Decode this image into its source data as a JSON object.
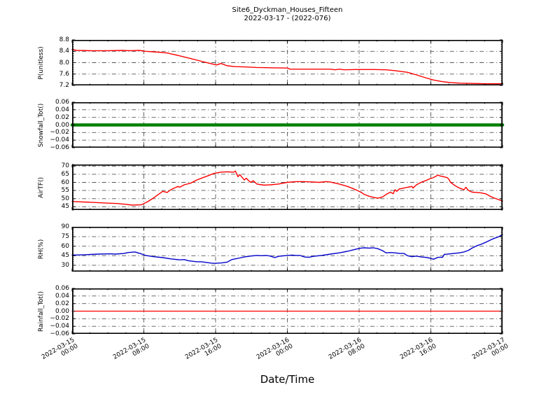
{
  "title": {
    "line1": "Site6_Dyckman_Houses_Fifteen",
    "line2": "2022-03-17 - (2022-076)"
  },
  "xaxis": {
    "label": "Date/Time",
    "xlim": [
      0,
      48
    ],
    "ticks_hours": [
      0,
      8,
      16,
      24,
      32,
      40,
      48
    ],
    "minor_step_hours": 2,
    "tick_labels": [
      [
        "2022-03-15",
        "00:00"
      ],
      [
        "2022-03-15",
        "08:00"
      ],
      [
        "2022-03-15",
        "16:00"
      ],
      [
        "2022-03-16",
        "00:00"
      ],
      [
        "2022-03-16",
        "08:00"
      ],
      [
        "2022-03-16",
        "16:00"
      ],
      [
        "2022-03-17",
        "00:00"
      ]
    ]
  },
  "style": {
    "background": "#ffffff",
    "spine_color": "#000000",
    "grid_color": "#555555",
    "red": "#ff0000",
    "green": "#008000",
    "blue": "#0000cc"
  },
  "chart_data": [
    {
      "type": "line",
      "name": "ph",
      "ylabel": "P(unitless)",
      "color": "#ff0000",
      "linewidth": 1.4,
      "ylim": [
        7.2,
        8.8
      ],
      "yticks": [
        8.8,
        8.4,
        8.0,
        7.6,
        7.2
      ],
      "ytick_labels": [
        "8.8",
        "8.4",
        "8.0",
        "7.6",
        "7.2"
      ],
      "yminor_step": 0.08,
      "x": [
        0,
        0.5,
        2,
        4,
        5.5,
        6.5,
        7.5,
        8.2,
        9.6,
        10.6,
        12,
        13.4,
        14.4,
        15.4,
        16.1,
        16.6,
        17.3,
        18.2,
        19.2,
        20.6,
        22,
        24,
        24.3,
        26.5,
        28.8,
        29.3,
        29.8,
        30.3,
        31.7,
        33.6,
        35,
        36,
        37.4,
        38.4,
        39.4,
        40.3,
        41.3,
        42.2,
        43.2,
        44.6,
        46,
        48
      ],
      "y": [
        8.46,
        8.43,
        8.42,
        8.42,
        8.43,
        8.42,
        8.43,
        8.4,
        8.37,
        8.34,
        8.24,
        8.13,
        8.05,
        7.97,
        7.92,
        7.97,
        7.89,
        7.86,
        7.85,
        7.83,
        7.82,
        7.81,
        7.77,
        7.77,
        7.77,
        7.75,
        7.77,
        7.75,
        7.76,
        7.76,
        7.75,
        7.72,
        7.66,
        7.57,
        7.47,
        7.39,
        7.33,
        7.3,
        7.28,
        7.27,
        7.26,
        7.26
      ]
    },
    {
      "type": "line",
      "name": "snowfall",
      "ylabel": "Snowfall_Tot()",
      "color": "#008000",
      "linewidth": 4.5,
      "ylim": [
        -0.06,
        0.06
      ],
      "yticks": [
        0.06,
        0.04,
        0.02,
        0,
        -0.02,
        -0.04,
        -0.06
      ],
      "ytick_labels": [
        "0.06",
        "0.04",
        "0.02",
        "0.00",
        "−0.02",
        "−0.04",
        "−0.06"
      ],
      "yminor_step": 0.004,
      "x": [
        0,
        48
      ],
      "y": [
        0,
        0
      ]
    },
    {
      "type": "line",
      "name": "air-temp",
      "ylabel": "AirTF()",
      "color": "#ff0000",
      "linewidth": 1.4,
      "ylim": [
        43,
        71
      ],
      "yticks": [
        70,
        65,
        60,
        55,
        50,
        45
      ],
      "ytick_labels": [
        "70",
        "65",
        "60",
        "55",
        "50",
        "45"
      ],
      "yminor_step": 1,
      "x": [
        0,
        2,
        4,
        5,
        6,
        6.7,
        7.7,
        8.4,
        9.1,
        9.6,
        10.1,
        10.6,
        11,
        11.8,
        12,
        12.5,
        13.2,
        13.9,
        14.4,
        15.1,
        15.8,
        16.6,
        17.3,
        18,
        18.2,
        18.5,
        18.7,
        19.2,
        19.4,
        19.9,
        20.2,
        20.6,
        21.4,
        22.1,
        23,
        24,
        25,
        25.9,
        26.9,
        27.6,
        28.3,
        28.8,
        29.8,
        30.7,
        31.4,
        32.2,
        32.6,
        33.1,
        33.6,
        34.1,
        34.6,
        35,
        35.5,
        35.8,
        36,
        36.2,
        36.5,
        37,
        37.4,
        37.9,
        38,
        38.4,
        38.9,
        39.4,
        39.8,
        40.3,
        40.8,
        41,
        41.8,
        42,
        42.2,
        42.7,
        43.2,
        43.7,
        43.9,
        44.2,
        44.6,
        45.1,
        45.6,
        46.1,
        46.6,
        47,
        47.5,
        48
      ],
      "y": [
        48.2,
        47.8,
        47.2,
        47,
        46.5,
        46,
        46.2,
        48,
        50.5,
        52.5,
        54.5,
        53.8,
        55.5,
        57.5,
        57,
        58.5,
        59.5,
        61.5,
        62.5,
        64,
        65.5,
        66.3,
        66.5,
        66.2,
        67,
        63.5,
        64.8,
        61.5,
        62.5,
        60,
        61,
        59,
        58.3,
        58.5,
        59,
        60,
        60.5,
        60.5,
        60.2,
        60,
        60.5,
        60.2,
        59,
        57.5,
        56,
        54,
        52.5,
        51.5,
        50.8,
        50.3,
        51,
        52.5,
        54,
        53,
        55.5,
        54.5,
        56,
        56.5,
        57,
        57.5,
        56.5,
        58.5,
        60,
        61,
        62,
        63,
        64.5,
        64,
        63,
        62,
        60,
        58,
        56.5,
        55.5,
        57,
        55,
        54,
        53.8,
        53.5,
        53,
        51.5,
        50.5,
        49.5,
        48.5
      ]
    },
    {
      "type": "line",
      "name": "rh",
      "ylabel": "RH(%)",
      "color": "#0000cc",
      "linewidth": 1.4,
      "ylim": [
        20,
        90.5
      ],
      "yticks": [
        90,
        75,
        60,
        45,
        30
      ],
      "ytick_labels": [
        "90",
        "75",
        "60",
        "45",
        "30"
      ],
      "yminor_step": 3,
      "x": [
        0,
        1.4,
        2.9,
        4.3,
        4.8,
        5.8,
        6.2,
        7,
        7.7,
        8.2,
        9.1,
        10.1,
        11,
        12,
        12.5,
        13,
        13.9,
        14.4,
        14.9,
        15.4,
        15.8,
        16.6,
        17.3,
        17.8,
        18.2,
        18.7,
        19.2,
        19.9,
        20.6,
        21.1,
        21.6,
        22.1,
        22.6,
        23,
        24,
        24.5,
        25,
        25.4,
        25.9,
        26.4,
        26.9,
        27.8,
        28.8,
        29.8,
        30.7,
        31.7,
        32.2,
        32.6,
        33.1,
        33.6,
        34.1,
        34.6,
        35,
        35.5,
        36,
        36.5,
        37,
        37.4,
        37.9,
        38.4,
        38.9,
        39.4,
        39.8,
        40.3,
        40.8,
        41.3,
        41.5,
        42.2,
        43.2,
        43.7,
        44.2,
        44.6,
        45.1,
        45.6,
        46.1,
        46.6,
        47,
        47.5,
        48
      ],
      "y": [
        46,
        46.5,
        47.5,
        48,
        47.5,
        48.5,
        50,
        51,
        48,
        45.5,
        43.5,
        42,
        40,
        38.5,
        39,
        37,
        35.5,
        35.5,
        34.5,
        33.5,
        33,
        33.5,
        35,
        39,
        40,
        41.5,
        43,
        44.5,
        45.5,
        45,
        45.5,
        44.5,
        42,
        44,
        45.5,
        46,
        45.5,
        45.5,
        43,
        42.5,
        44,
        45.5,
        47.5,
        49.5,
        52,
        55.5,
        57,
        57.5,
        57,
        57.5,
        56,
        53,
        49.5,
        50,
        49.5,
        48.5,
        48.5,
        45,
        43.5,
        44.5,
        43,
        42.5,
        41.5,
        39.5,
        42.5,
        42.5,
        47,
        48,
        49.5,
        51,
        53.5,
        57,
        60.5,
        63,
        66,
        69.5,
        72,
        74.5,
        78
      ]
    },
    {
      "type": "line",
      "name": "rainfall",
      "ylabel": "Rainfall_Tot()",
      "color": "#ff0000",
      "linewidth": 1.3,
      "ylim": [
        -0.06,
        0.06
      ],
      "yticks": [
        0.06,
        0.04,
        0.02,
        0,
        -0.02,
        -0.04,
        -0.06
      ],
      "ytick_labels": [
        "0.06",
        "0.04",
        "0.02",
        "0.00",
        "−0.02",
        "−0.04",
        "−0.06"
      ],
      "yminor_step": 0.004,
      "x": [
        0,
        48
      ],
      "y": [
        0,
        0
      ]
    }
  ]
}
